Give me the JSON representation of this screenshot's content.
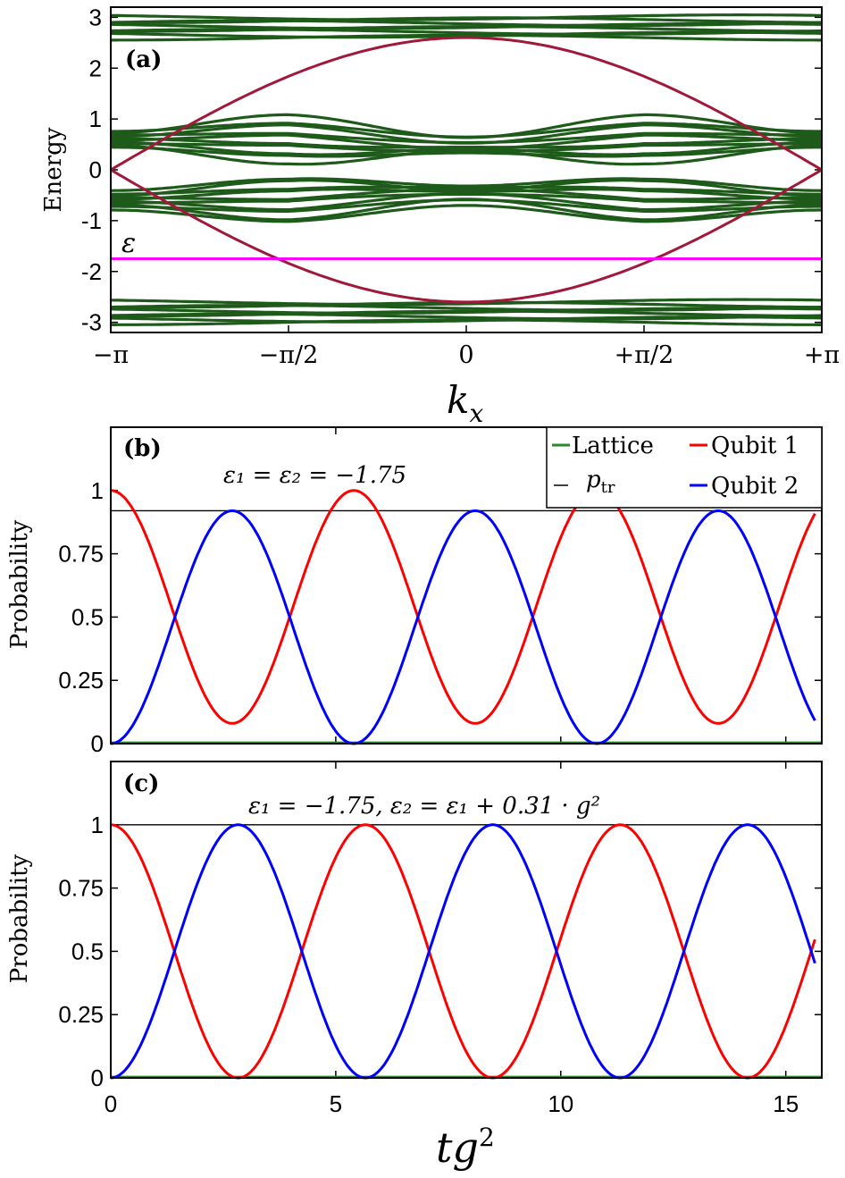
{
  "colors": {
    "band": "#1e5a1a",
    "edge": "#a0183a",
    "epsilon_line": "#ff00ff",
    "lattice": "#2a8a2a",
    "qubit1": "#ff0000",
    "qubit2": "#0000ff",
    "ptr": "#000000"
  },
  "chart_data": [
    {
      "type": "line",
      "panel_label": "(a)",
      "title": "",
      "xlabel": "k_x",
      "ylabel": "Energy",
      "xlim": [
        -3.14159,
        3.14159
      ],
      "ylim": [
        -3.2,
        3.2
      ],
      "x_ticks": [
        -3.14159,
        -1.5708,
        0,
        1.5708,
        3.14159
      ],
      "x_tick_labels": [
        "−π",
        "−π/2",
        "0",
        "+π/2",
        "+π"
      ],
      "y_ticks": [
        -3,
        -2,
        -1,
        0,
        1,
        2,
        3
      ],
      "y_tick_labels": [
        "-3",
        "-2",
        "-1",
        "0",
        "1",
        "2",
        "3"
      ],
      "annotation": "ε",
      "epsilon_level": -1.75,
      "band_groups": [
        {
          "name": "upper band",
          "center": 2.8,
          "lines": 8,
          "spread": 0.2,
          "amplitude": 0.08,
          "min_spacing": 0.02
        },
        {
          "name": "positive inner band",
          "center": 0.6,
          "lines": 10,
          "spread": 0.45,
          "amplitude": 0.28,
          "min_spacing": 0.03
        },
        {
          "name": "negative inner band",
          "center": -0.6,
          "lines": 10,
          "spread": 0.45,
          "amplitude": 0.28,
          "min_spacing": 0.03
        },
        {
          "name": "lower band",
          "center": -2.8,
          "lines": 8,
          "spread": 0.2,
          "amplitude": 0.08,
          "min_spacing": 0.02
        }
      ],
      "edge_states": {
        "description": "E = ±2.6·cos(k_x/2)",
        "amplitude": 2.6,
        "crossing_k": [
          -1.65,
          1.65
        ]
      }
    },
    {
      "type": "line",
      "panel_label": "(b)",
      "annotation": "ε₁ = ε₂ = −1.75",
      "xlabel": "tg²",
      "ylabel": "Probability",
      "xlim": [
        0,
        15.8
      ],
      "ylim": [
        0,
        1.25
      ],
      "y_ticks": [
        0,
        0.25,
        0.5,
        0.75,
        1
      ],
      "y_tick_labels": [
        "0",
        "0.25",
        "0.5",
        "0.75",
        "1"
      ],
      "p_tr": 0.92,
      "legend": [
        "Lattice",
        "Qubit 1",
        "p_tr",
        "Qubit 2"
      ],
      "legend_position": "top-right",
      "series": [
        {
          "name": "Qubit 1",
          "model": "1 − 0.92·sin²(πt/5.4)",
          "period": 5.4,
          "max_transfer": 0.92
        },
        {
          "name": "Qubit 2",
          "model": "0.92·sin²(πt/5.4)",
          "period": 5.4,
          "max_transfer": 0.92
        },
        {
          "name": "Lattice",
          "model": "≈ 0",
          "value": 0.003
        }
      ]
    },
    {
      "type": "line",
      "panel_label": "(c)",
      "annotation": "ε₁ = −1.75,    ε₂ = ε₁ + 0.31 · g²",
      "xlabel": "tg²",
      "ylabel": "Probability",
      "xlim": [
        0,
        15.8
      ],
      "ylim": [
        0,
        1.25
      ],
      "x_ticks": [
        0,
        5,
        10,
        15
      ],
      "x_tick_labels": [
        "0",
        "5",
        "10",
        "15"
      ],
      "y_ticks": [
        0,
        0.25,
        0.5,
        0.75,
        1
      ],
      "y_tick_labels": [
        "0",
        "0.25",
        "0.5",
        "0.75",
        "1"
      ],
      "p_tr": 1.0,
      "series": [
        {
          "name": "Qubit 1",
          "model": "cos²(πt/5.66)",
          "period": 5.66,
          "max_transfer": 1.0
        },
        {
          "name": "Qubit 2",
          "model": "sin²(πt/5.66)",
          "period": 5.66,
          "max_transfer": 1.0
        },
        {
          "name": "Lattice",
          "model": "≈ 0",
          "value": 0.003
        }
      ]
    }
  ],
  "texts": {
    "a_label": "(a)",
    "a_ylabel": "Energy",
    "a_eps": "ε",
    "a_xlabel_main": "k",
    "a_xlabel_sub": "x",
    "b_label": "(b)",
    "b_eq": "ε₁ = ε₂ = −1.75",
    "b_ylabel": "Probability",
    "c_label": "(c)",
    "c_eq": "ε₁ = −1.75,    ε₂ = ε₁ + 0.31 · g²",
    "c_ylabel": "Probability",
    "bottom_xlabel_main": "tg",
    "bottom_xlabel_sup": "2",
    "legend_lattice": "Lattice",
    "legend_qubit1": "Qubit 1",
    "legend_ptr_main": "p",
    "legend_ptr_sub": "tr",
    "legend_qubit2": "Qubit 2"
  }
}
